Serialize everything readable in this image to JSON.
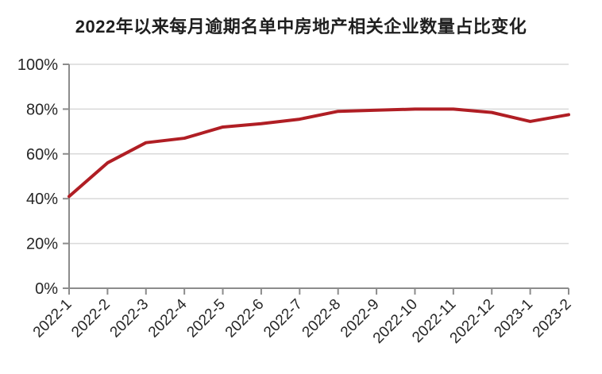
{
  "chart_data": {
    "type": "line",
    "title": "2022年以来每月逾期名单中房地产相关企业数量占比变化",
    "categories": [
      "2022-1",
      "2022-2",
      "2022-3",
      "2022-4",
      "2022-5",
      "2022-6",
      "2022-7",
      "2022-8",
      "2022-9",
      "2022-10",
      "2022-11",
      "2022-12",
      "2023-1",
      "2023-2"
    ],
    "values": [
      41,
      56,
      65,
      67,
      72,
      73.5,
      75.5,
      79,
      79.5,
      80,
      80,
      78.5,
      74.5,
      77.5
    ],
    "unit": "%",
    "ylim": [
      0,
      100
    ],
    "ytick_values": [
      0,
      20,
      40,
      60,
      80,
      100
    ],
    "ytick_labels": [
      "0%",
      "20%",
      "40%",
      "60%",
      "80%",
      "100%"
    ],
    "grid": true,
    "legend": false,
    "colors": {
      "line": "#B01E24",
      "grid": "#D9D9D9",
      "axis": "#8C8C8C",
      "tick_text": "#262626",
      "title_text": "#1F1F1F"
    }
  }
}
